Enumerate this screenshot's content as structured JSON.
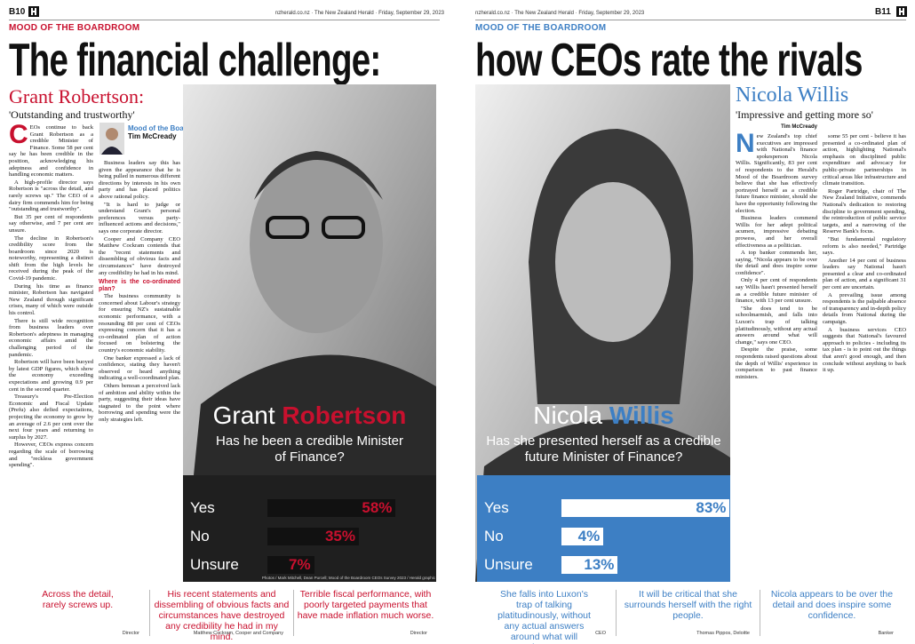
{
  "left_page": {
    "page_number": "B10",
    "site": "nzherald.co.nz",
    "paper": "The New Zealand Herald",
    "date": "Friday, September 29, 2023",
    "section": "MOOD OF THE BOARDROOM",
    "headline": "The financial challenge:",
    "name": "Grant Robertson:",
    "subhead": "'Outstanding and trustworthy'",
    "byline_box": {
      "series": "Mood of the Boardroom",
      "author": "Tim McCready"
    },
    "columns": [
      [
        {
          "p": "CEOs continue to back Grant Robertson as a credible Minister of Finance. Some 58 per cent say he has been credible in the position, acknowledging his adeptness and confidence in handling economic matters."
        },
        {
          "p": "A high-profile director says Robertson is \"across the detail, and rarely screws up.\" The CEO of a dairy firm commends him for being \"outstanding and trustworthy\"."
        },
        {
          "p": "But 35 per cent of respondents say otherwise, and 7 per cent are unsure."
        },
        {
          "p": "The decline in Robertson's credibility score from the boardroom since 2020 is noteworthy, representing a distinct shift from the high levels he received during the peak of the Covid-19 pandemic."
        },
        {
          "p": "During his time as finance minister, Robertson has navigated New Zealand through significant crises, many of which were outside his control."
        },
        {
          "p": "There is still wide recognition from business leaders over Robertson's adeptness in managing economic affairs amid the challenging period of the pandemic."
        },
        {
          "p": "Robertson will have been buoyed by latest GDP figures, which show the economy exceeding expectations and growing 0.9 per cent in the second quarter."
        },
        {
          "p": "Treasury's Pre-Election Economic and Fiscal Update (Prefu) also defied expectations, projecting the economy to grow by an average of 2.6 per cent over the next four years and returning to surplus by 2027."
        },
        {
          "p": "However, CEOs express concern regarding the scale of borrowing and \"reckless government spending\"."
        }
      ],
      [
        {
          "p": "Business leaders say this has given the appearance that he is being pulled in numerous different directions by interests in his own party and has placed politics above rational policy."
        },
        {
          "p": "\"It is hard to judge or understand Grant's personal preferences versus party-influenced actions and decisions,\" says one corporate director."
        },
        {
          "p": "Cooper and Company CEO Matthew Cockram contends that the \"recent statements and dissembling of obvious facts and circumstances\" have destroyed any credibility he had in his mind."
        },
        {
          "h": "Where is the co-ordinated plan?"
        },
        {
          "p": "The business community is concerned about Labour's strategy for ensuring NZ's sustainable economic performance, with a resounding 88 per cent of CEOs expressing concern that it has a co-ordinated plan of action focused on bolstering the country's economic stability."
        },
        {
          "p": "One banker expressed a lack of confidence, stating they haven't observed or heard anything indicating a well-coordinated plan."
        },
        {
          "p": "Others bemoan a perceived lack of ambition and ability within the party, suggesting their ideas have stagnated to the point where borrowing and spending were the only strategies left."
        }
      ]
    ],
    "poll": {
      "first_name": "Grant",
      "last_name": "Robertson",
      "question": "Has he been a credible Minister of Finance?",
      "categories": [
        "Yes",
        "No",
        "Unsure"
      ],
      "values": [
        58,
        35,
        7
      ],
      "value_labels": [
        "58%",
        "35%",
        "7%"
      ],
      "xlim": [
        0,
        100
      ],
      "credit": "Photos / Mark Mitchell, Dean Purcell; Mood of the Boardroom CEOs Survey 2023 / Herald graphic"
    },
    "quotes": [
      {
        "text": "Across the detail, rarely screws up.",
        "source": "Director"
      },
      {
        "text": "His recent statements and dissembling of obvious facts and circumstances have destroyed any credibility he had in my mind.",
        "source": "Matthew Cockram, Cooper and Company"
      },
      {
        "text": "Terrible fiscal performance, with poorly targeted payments that have made inflation much worse.",
        "source": "Director"
      }
    ]
  },
  "right_page": {
    "page_number": "B11",
    "site": "nzherald.co.nz",
    "paper": "The New Zealand Herald",
    "date": "Friday, September 29, 2023",
    "section": "MOOD OF THE BOARDROOM",
    "headline": "how CEOs rate the rivals",
    "name": "Nicola Willis",
    "subhead": "'Impressive and getting more so'",
    "author": "Tim McCready",
    "columns": [
      [
        {
          "p": "New Zealand's top chief executives are impressed with National's finance spokesperson Nicola Willis. Significantly, 83 per cent of respondents to the Herald's Mood of the Boardroom survey believe that she has effectively portrayed herself as a credible future finance minister, should she have the opportunity following the election."
        },
        {
          "p": "Business leaders commend Willis for her adept political acumen, impressive debating prowess, and her overall effectiveness as a politician."
        },
        {
          "p": "A top banker commends her, saying, \"Nicola appears to be over the detail and does inspire some confidence\"."
        },
        {
          "p": "Only 4 per cent of respondents say Willis hasn't presented herself as a credible future minister of finance, with 13 per cent unsure."
        },
        {
          "p": "\"She does tend to be schoolmarmish, and falls into Luxon's trap of talking platitudinously, without any actual answers around what will change,\" says one CEO."
        },
        {
          "p": "Despite the praise, some respondents raised questions about the depth of Willis' experience in comparison to past finance ministers."
        }
      ],
      [
        {
          "p": "some 55 per cent - believe it has presented a co-ordinated plan of action, highlighting National's emphasis on disciplined public expenditure and advocacy for public-private partnerships in critical areas like infrastructure and climate transition."
        },
        {
          "p": "Roger Partridge, chair of The New Zealand Initiative, commends National's dedication to restoring discipline to government spending, the reintroduction of public service targets, and a narrowing of the Reserve Bank's focus."
        },
        {
          "p": "\"But fundamental regulatory reform is also needed,\" Partridge says."
        },
        {
          "p": "Another 14 per cent of business leaders say National hasn't presented a clear and co-ordinated plan of action, and a significant 31 per cent are uncertain."
        },
        {
          "p": "A prevailing issue among respondents is the palpable absence of transparency and in-depth policy details from National during the campaign."
        },
        {
          "p": "A business services CEO suggests that National's favoured approach to policies - including its tax plan - is to point out the things that aren't good enough, and then conclude without anything to back it up."
        }
      ]
    ],
    "poll": {
      "first_name": "Nicola",
      "last_name": "Willis",
      "question": "Has she presented herself as a credible future Minister of Finance?",
      "categories": [
        "Yes",
        "No",
        "Unsure"
      ],
      "values": [
        83,
        4,
        13
      ],
      "value_labels": [
        "83%",
        "4%",
        "13%"
      ],
      "xlim": [
        0,
        100
      ]
    },
    "quotes": [
      {
        "text": "She falls into Luxon's trap of talking platitudinously, without any actual answers around what will change.",
        "source": "CEO"
      },
      {
        "text": "It will be critical that she surrounds herself with the right people.",
        "source": "Thomas Pippos, Deloitte"
      },
      {
        "text": "Nicola appears to be over the detail and does inspire some confidence.",
        "source": "Banker"
      }
    ]
  }
}
